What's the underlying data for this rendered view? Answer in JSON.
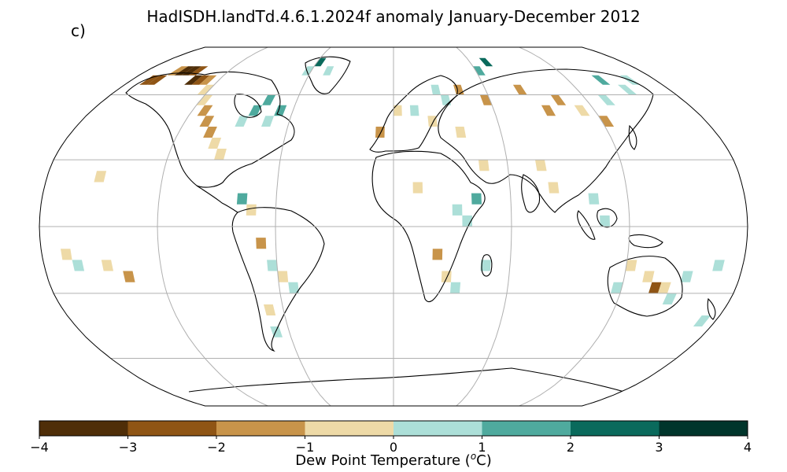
{
  "figure": {
    "title": "HadISDH.landTd.4.6.1.2024f anomaly January-December 2012",
    "panel_label": "c)",
    "projection": "Robinson",
    "colorbar": {
      "label_prefix": "Dew Point Temperature (",
      "label_sup": "o",
      "label_suffix": "C)",
      "ticks": [
        "−4",
        "−3",
        "−2",
        "−1",
        "0",
        "1",
        "2",
        "3",
        "4"
      ],
      "colors": [
        "#543005",
        "#8c510a",
        "#bf812d",
        "#dfc27d",
        "#f6e8c3",
        "#c7eae5",
        "#80cdc1",
        "#35978f",
        "#01665e",
        "#003c30"
      ],
      "bins": [
        {
          "range": "-4 to -3",
          "color": "#4f2e08"
        },
        {
          "range": "-3 to -2",
          "color": "#8f5515"
        },
        {
          "range": "-2 to -1",
          "color": "#c8944a"
        },
        {
          "range": "-1 to 0",
          "color": "#eedaa7"
        },
        {
          "range": "0 to 1",
          "color": "#acdfd8"
        },
        {
          "range": "1 to 2",
          "color": "#4faa9e"
        },
        {
          "range": "2 to 3",
          "color": "#0a6a5c"
        },
        {
          "range": "3 to 4",
          "color": "#00352b"
        }
      ]
    },
    "gridlines": {
      "latitudes": [
        -60,
        -30,
        0,
        30,
        60
      ],
      "longitudes": [
        -120,
        -60,
        0,
        60,
        120
      ]
    }
  },
  "chart_data": {
    "type": "heatmap",
    "title": "HadISDH.landTd.4.6.1.2024f anomaly January-December 2012",
    "xlabel": "",
    "ylabel": "",
    "colorbar_label": "Dew Point Temperature (oC)",
    "vmin": -4,
    "vmax": 4,
    "grid_resolution_deg": 5,
    "cells": [
      {
        "lon": -170,
        "lat": 65,
        "v": -2.5
      },
      {
        "lon": -165,
        "lat": 65,
        "v": -2.5
      },
      {
        "lon": -160,
        "lat": 70,
        "v": -1.5
      },
      {
        "lon": -155,
        "lat": 70,
        "v": -3.5
      },
      {
        "lon": -150,
        "lat": 70,
        "v": -3.5
      },
      {
        "lon": -145,
        "lat": 70,
        "v": -2.5
      },
      {
        "lon": -140,
        "lat": 65,
        "v": -3.5
      },
      {
        "lon": -135,
        "lat": 65,
        "v": -2.5
      },
      {
        "lon": -130,
        "lat": 65,
        "v": -1.5
      },
      {
        "lon": -125,
        "lat": 60,
        "v": -0.5
      },
      {
        "lon": -120,
        "lat": 55,
        "v": -0.5
      },
      {
        "lon": -115,
        "lat": 50,
        "v": -1.5
      },
      {
        "lon": -110,
        "lat": 45,
        "v": -1.5
      },
      {
        "lon": -105,
        "lat": 40,
        "v": -1.5
      },
      {
        "lon": -100,
        "lat": 35,
        "v": -0.5
      },
      {
        "lon": -95,
        "lat": 30,
        "v": -0.5
      },
      {
        "lon": -90,
        "lat": 45,
        "v": 0.5
      },
      {
        "lon": -85,
        "lat": 50,
        "v": 1.5
      },
      {
        "lon": -80,
        "lat": 55,
        "v": 1.5
      },
      {
        "lon": -75,
        "lat": 45,
        "v": 0.5
      },
      {
        "lon": -70,
        "lat": 50,
        "v": 1.5
      },
      {
        "lon": -65,
        "lat": 70,
        "v": 0.5
      },
      {
        "lon": -60,
        "lat": 75,
        "v": 2.5
      },
      {
        "lon": -50,
        "lat": 70,
        "v": 0.5
      },
      {
        "lon": -80,
        "lat": 10,
        "v": 1.5
      },
      {
        "lon": -75,
        "lat": 5,
        "v": -0.5
      },
      {
        "lon": -70,
        "lat": -10,
        "v": -1.5
      },
      {
        "lon": -65,
        "lat": -20,
        "v": 0.5
      },
      {
        "lon": -60,
        "lat": -25,
        "v": -0.5
      },
      {
        "lon": -55,
        "lat": -30,
        "v": 0.5
      },
      {
        "lon": -70,
        "lat": -40,
        "v": -0.5
      },
      {
        "lon": -70,
        "lat": -50,
        "v": 0.5
      },
      {
        "lon": -10,
        "lat": 40,
        "v": -1.5
      },
      {
        "lon": 0,
        "lat": 50,
        "v": -0.5
      },
      {
        "lon": 10,
        "lat": 50,
        "v": 0.5
      },
      {
        "lon": 20,
        "lat": 45,
        "v": -0.5
      },
      {
        "lon": 25,
        "lat": 60,
        "v": 0.5
      },
      {
        "lon": 30,
        "lat": 55,
        "v": 0.5
      },
      {
        "lon": 35,
        "lat": 40,
        "v": -0.5
      },
      {
        "lon": 40,
        "lat": 60,
        "v": -1.5
      },
      {
        "lon": 55,
        "lat": 55,
        "v": -1.5
      },
      {
        "lon": 60,
        "lat": 70,
        "v": 1.5
      },
      {
        "lon": 70,
        "lat": 75,
        "v": 2.5
      },
      {
        "lon": 80,
        "lat": 60,
        "v": -1.5
      },
      {
        "lon": 90,
        "lat": 50,
        "v": -1.5
      },
      {
        "lon": 100,
        "lat": 55,
        "v": -1.5
      },
      {
        "lon": 110,
        "lat": 50,
        "v": -0.5
      },
      {
        "lon": 120,
        "lat": 45,
        "v": -1.5
      },
      {
        "lon": 130,
        "lat": 55,
        "v": 0.5
      },
      {
        "lon": 140,
        "lat": 65,
        "v": 1.5
      },
      {
        "lon": 150,
        "lat": 60,
        "v": 0.5
      },
      {
        "lon": 160,
        "lat": 65,
        "v": 0.5
      },
      {
        "lon": 75,
        "lat": 25,
        "v": -0.5
      },
      {
        "lon": 80,
        "lat": 15,
        "v": -0.5
      },
      {
        "lon": 100,
        "lat": 10,
        "v": 0.5
      },
      {
        "lon": 105,
        "lat": 0,
        "v": 0.5
      },
      {
        "lon": 45,
        "lat": 25,
        "v": -0.5
      },
      {
        "lon": 10,
        "lat": 15,
        "v": -0.5
      },
      {
        "lon": 30,
        "lat": 5,
        "v": 0.5
      },
      {
        "lon": 35,
        "lat": 0,
        "v": 0.5
      },
      {
        "lon": 40,
        "lat": 10,
        "v": 1.5
      },
      {
        "lon": 20,
        "lat": -15,
        "v": -1.5
      },
      {
        "lon": 25,
        "lat": -25,
        "v": -0.5
      },
      {
        "lon": 30,
        "lat": -30,
        "v": 0.5
      },
      {
        "lon": 45,
        "lat": -20,
        "v": 0.5
      },
      {
        "lon": 120,
        "lat": -20,
        "v": -0.5
      },
      {
        "lon": 130,
        "lat": -25,
        "v": -0.5
      },
      {
        "lon": 135,
        "lat": -30,
        "v": -2.5
      },
      {
        "lon": 140,
        "lat": -30,
        "v": -0.5
      },
      {
        "lon": 145,
        "lat": -35,
        "v": 0.5
      },
      {
        "lon": 150,
        "lat": -25,
        "v": 0.5
      },
      {
        "lon": 115,
        "lat": -30,
        "v": 0.5
      },
      {
        "lon": 170,
        "lat": -45,
        "v": 0.5
      },
      {
        "lon": -170,
        "lat": -15,
        "v": -0.5
      },
      {
        "lon": -165,
        "lat": -20,
        "v": 0.5
      },
      {
        "lon": -150,
        "lat": -20,
        "v": -0.5
      },
      {
        "lon": -140,
        "lat": -25,
        "v": -1.5
      },
      {
        "lon": -155,
        "lat": 20,
        "v": -0.5
      },
      {
        "lon": 165,
        "lat": -20,
        "v": 0.5
      }
    ]
  }
}
